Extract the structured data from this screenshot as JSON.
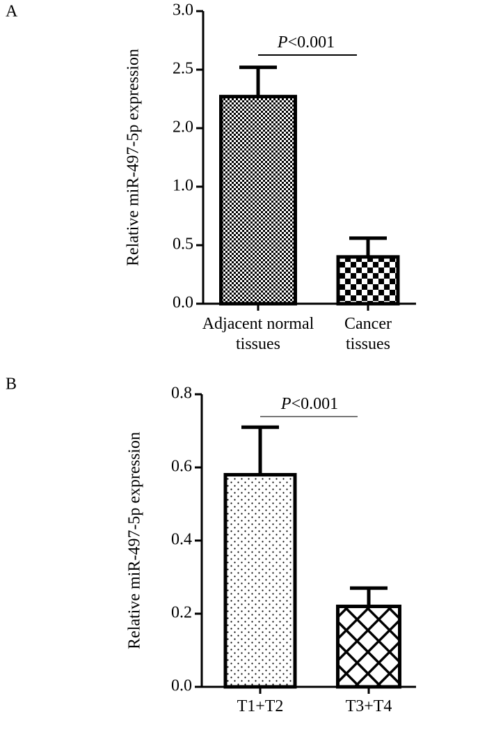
{
  "chart_data": [
    {
      "type": "bar",
      "panel_label": "A",
      "y_label": "Relative miR-497-5p expression",
      "categories": [
        "Adjacent normal tissues",
        "Cancer tissues"
      ],
      "values": [
        2.27,
        0.4
      ],
      "errors": [
        0.25,
        0.16
      ],
      "color": "#000000",
      "annotation_italic": "P",
      "annotation": "<0.001",
      "ylim": [
        0,
        3
      ],
      "yticks": [
        {
          "value": 0,
          "label": "0.0"
        },
        0.5,
        {
          "value": 1,
          "label": "1.0"
        },
        {
          "value": 2,
          "label": "2.0"
        },
        2.5,
        {
          "value": 3,
          "label": "3.0"
        }
      ]
    },
    {
      "type": "bar",
      "panel_label": "B",
      "y_label": "Relative miR-497-5p expression",
      "categories": [
        "T1+T2",
        "T3+T4"
      ],
      "values": [
        0.58,
        0.22
      ],
      "errors": [
        0.13,
        0.05
      ],
      "color": "#000000",
      "annotation_italic": "P",
      "annotation": "<0.001",
      "ylim": [
        0,
        0.8
      ],
      "yticks": [
        {
          "value": 0,
          "label": "0.0"
        },
        0.2,
        0.4,
        0.6,
        0.8
      ]
    }
  ]
}
